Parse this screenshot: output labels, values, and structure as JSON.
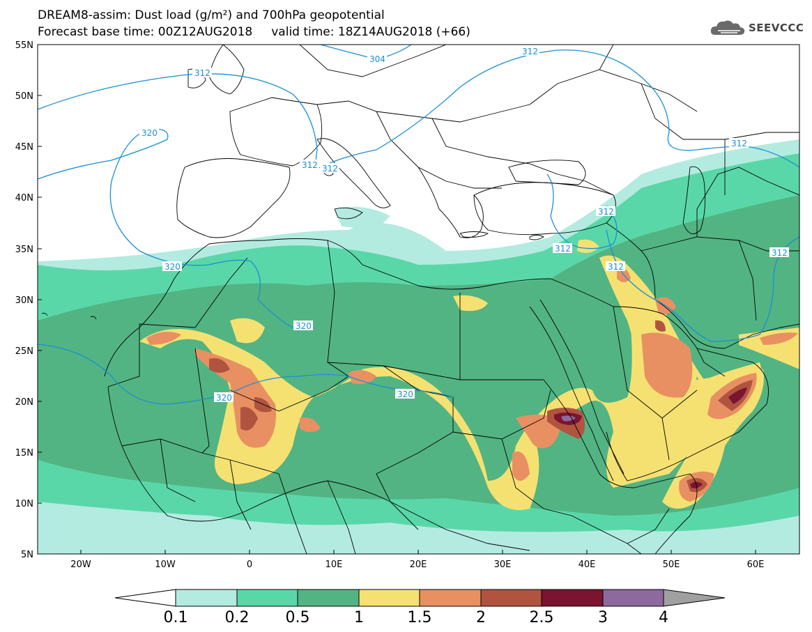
{
  "header": {
    "title_line1": "DREAM8-assim: Dust load (g/m²) and 700hPa geopotential",
    "title_line2": "Forecast base time: 00Z12AUG2018     valid time: 18Z14AUG2018 (+66)"
  },
  "logo": {
    "text": "SEEVCCC",
    "icon": "cloud-icon"
  },
  "map": {
    "lat_labels": [
      "55N",
      "50N",
      "45N",
      "40N",
      "35N",
      "30N",
      "25N",
      "20N",
      "15N",
      "10N",
      "5N"
    ],
    "lon_labels": [
      "20W",
      "10W",
      "0",
      "10E",
      "20E",
      "30E",
      "40E",
      "50E",
      "60E"
    ],
    "contour_labels": [
      "304",
      "312",
      "312",
      "312",
      "312",
      "312",
      "312",
      "312",
      "312",
      "320",
      "320",
      "320",
      "320"
    ]
  },
  "colorbar": {
    "labels": [
      "0.1",
      "0.2",
      "0.5",
      "1",
      "1.5",
      "2",
      "2.5",
      "3",
      "4"
    ],
    "colors": [
      "#ffffff",
      "#b4ebe0",
      "#5ad7a8",
      "#52b482",
      "#f5e172",
      "#e89062",
      "#b05440",
      "#7a1430",
      "#8c6aa0",
      "#a0a0a0"
    ]
  },
  "chart_data": {
    "type": "heatmap",
    "title": "DREAM8-assim: Dust load (g/m²) and 700hPa geopotential",
    "variable": "Dust load (g/m²)",
    "levels": [
      0.1,
      0.2,
      0.5,
      1,
      1.5,
      2,
      2.5,
      3,
      4
    ],
    "contour_variable": "700hPa geopotential",
    "contour_levels": [
      304,
      312,
      320
    ],
    "lon_range": [
      -25,
      65
    ],
    "lat_range": [
      5,
      55
    ]
  }
}
